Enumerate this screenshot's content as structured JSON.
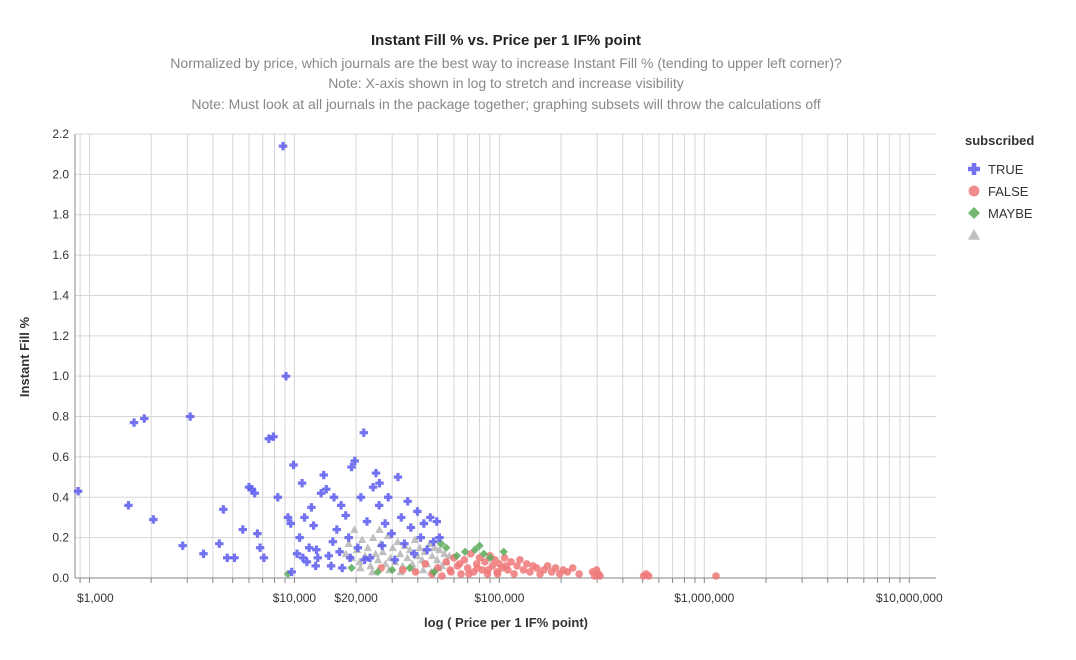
{
  "chart_data": {
    "type": "scatter",
    "title": "Instant Fill % vs. Price per 1 IF% point",
    "subtitles": [
      "Normalized by price, which journals are the best way to increase Instant Fill % (tending to upper left corner)?",
      "Note: X-axis shown in log to stretch and increase visibility",
      "Note: Must look at all journals in the package together; graphing subsets will throw the calculations off"
    ],
    "xlabel": "log ( Price per 1 IF% point)",
    "ylabel": "Instant Fill %",
    "x_scale": "log",
    "xlim": [
      850,
      13500000
    ],
    "ylim": [
      0,
      2.2
    ],
    "x_ticks": [
      {
        "value": 1000,
        "label": "$1,000"
      },
      {
        "value": 10000,
        "label": "$10,000"
      },
      {
        "value": 20000,
        "label": "$20,000"
      },
      {
        "value": 100000,
        "label": "$100,000"
      },
      {
        "value": 1000000,
        "label": "$1,000,000"
      },
      {
        "value": 10000000,
        "label": "$10,000,000"
      }
    ],
    "y_ticks": [
      {
        "value": 0,
        "label": "0.0"
      },
      {
        "value": 0.2,
        "label": "0.2"
      },
      {
        "value": 0.4,
        "label": "0.4"
      },
      {
        "value": 0.6,
        "label": "0.6"
      },
      {
        "value": 0.8,
        "label": "0.8"
      },
      {
        "value": 1.0,
        "label": "1.0"
      },
      {
        "value": 1.2,
        "label": "1.2"
      },
      {
        "value": 1.4,
        "label": "1.4"
      },
      {
        "value": 1.6,
        "label": "1.6"
      },
      {
        "value": 1.8,
        "label": "1.8"
      },
      {
        "value": 2.0,
        "label": "2.0"
      },
      {
        "value": 2.2,
        "label": "2.2"
      }
    ],
    "grid": true,
    "legend_title": "subscribed",
    "legend_position": "right",
    "series": [
      {
        "name": "TRUE",
        "marker": "cross",
        "color": "#5b5bf0",
        "points": [
          [
            880,
            0.43
          ],
          [
            1550,
            0.36
          ],
          [
            1650,
            0.77
          ],
          [
            1850,
            0.79
          ],
          [
            2050,
            0.29
          ],
          [
            2850,
            0.16
          ],
          [
            3100,
            0.8
          ],
          [
            3600,
            0.12
          ],
          [
            4300,
            0.17
          ],
          [
            4500,
            0.34
          ],
          [
            4700,
            0.1
          ],
          [
            5100,
            0.1
          ],
          [
            5600,
            0.24
          ],
          [
            6000,
            0.45
          ],
          [
            6200,
            0.44
          ],
          [
            6400,
            0.42
          ],
          [
            6600,
            0.22
          ],
          [
            6800,
            0.15
          ],
          [
            7100,
            0.1
          ],
          [
            7500,
            0.69
          ],
          [
            7900,
            0.7
          ],
          [
            8300,
            0.4
          ],
          [
            8800,
            2.14
          ],
          [
            9100,
            1.0
          ],
          [
            9300,
            0.3
          ],
          [
            9600,
            0.27
          ],
          [
            9900,
            0.56
          ],
          [
            10300,
            0.12
          ],
          [
            10600,
            0.2
          ],
          [
            10900,
            0.47
          ],
          [
            11200,
            0.3
          ],
          [
            11500,
            0.08
          ],
          [
            11800,
            0.15
          ],
          [
            12100,
            0.35
          ],
          [
            12400,
            0.26
          ],
          [
            12700,
            0.06
          ],
          [
            13000,
            0.1
          ],
          [
            13500,
            0.42
          ],
          [
            13900,
            0.51
          ],
          [
            14300,
            0.44
          ],
          [
            14700,
            0.11
          ],
          [
            15100,
            0.06
          ],
          [
            15600,
            0.4
          ],
          [
            16100,
            0.24
          ],
          [
            16600,
            0.13
          ],
          [
            17100,
            0.05
          ],
          [
            17800,
            0.31
          ],
          [
            18400,
            0.2
          ],
          [
            19000,
            0.55
          ],
          [
            19700,
            0.58
          ],
          [
            20400,
            0.15
          ],
          [
            21100,
            0.4
          ],
          [
            21800,
            0.72
          ],
          [
            22600,
            0.28
          ],
          [
            23400,
            0.1
          ],
          [
            24200,
            0.45
          ],
          [
            25000,
            0.52
          ],
          [
            25900,
            0.36
          ],
          [
            26800,
            0.16
          ],
          [
            27700,
            0.27
          ],
          [
            28700,
            0.4
          ],
          [
            29800,
            0.22
          ],
          [
            30900,
            0.09
          ],
          [
            32000,
            0.5
          ],
          [
            33200,
            0.3
          ],
          [
            34400,
            0.17
          ],
          [
            35700,
            0.38
          ],
          [
            37000,
            0.25
          ],
          [
            38400,
            0.12
          ],
          [
            39800,
            0.33
          ],
          [
            41300,
            0.2
          ],
          [
            42800,
            0.27
          ],
          [
            44400,
            0.14
          ],
          [
            46000,
            0.3
          ],
          [
            47700,
            0.18
          ],
          [
            49500,
            0.28
          ],
          [
            51000,
            0.2
          ],
          [
            15400,
            0.18
          ],
          [
            18700,
            0.1
          ],
          [
            22000,
            0.09
          ],
          [
            11000,
            0.1
          ],
          [
            26000,
            0.47
          ],
          [
            12800,
            0.14
          ],
          [
            9700,
            0.03
          ],
          [
            16900,
            0.36
          ]
        ]
      },
      {
        "name": "FALSE",
        "marker": "circle",
        "color": "#f07878",
        "points": [
          [
            26500,
            0.05
          ],
          [
            33800,
            0.04
          ],
          [
            39000,
            0.03
          ],
          [
            43500,
            0.07
          ],
          [
            47000,
            0.02
          ],
          [
            50000,
            0.05
          ],
          [
            52500,
            0.01
          ],
          [
            55000,
            0.08
          ],
          [
            57500,
            0.04
          ],
          [
            60000,
            0.1
          ],
          [
            62500,
            0.06
          ],
          [
            65000,
            0.02
          ],
          [
            67500,
            0.09
          ],
          [
            70000,
            0.05
          ],
          [
            72500,
            0.12
          ],
          [
            75000,
            0.03
          ],
          [
            77500,
            0.07
          ],
          [
            80000,
            0.1
          ],
          [
            82500,
            0.04
          ],
          [
            85000,
            0.08
          ],
          [
            87500,
            0.02
          ],
          [
            90000,
            0.11
          ],
          [
            92500,
            0.06
          ],
          [
            95000,
            0.09
          ],
          [
            97500,
            0.03
          ],
          [
            100000,
            0.07
          ],
          [
            103000,
            0.05
          ],
          [
            106000,
            0.1
          ],
          [
            110000,
            0.04
          ],
          [
            114000,
            0.08
          ],
          [
            118000,
            0.02
          ],
          [
            122000,
            0.06
          ],
          [
            126000,
            0.09
          ],
          [
            131000,
            0.04
          ],
          [
            136000,
            0.07
          ],
          [
            141000,
            0.03
          ],
          [
            146000,
            0.06
          ],
          [
            152000,
            0.05
          ],
          [
            158000,
            0.02
          ],
          [
            165000,
            0.04
          ],
          [
            172000,
            0.06
          ],
          [
            180000,
            0.03
          ],
          [
            188000,
            0.05
          ],
          [
            197000,
            0.02
          ],
          [
            205000,
            0.04
          ],
          [
            215000,
            0.03
          ],
          [
            228000,
            0.05
          ],
          [
            245000,
            0.02
          ],
          [
            285000,
            0.03
          ],
          [
            292000,
            0.01
          ],
          [
            298000,
            0.04
          ],
          [
            304000,
            0.02
          ],
          [
            310000,
            0.01
          ],
          [
            505000,
            0.01
          ],
          [
            520000,
            0.02
          ],
          [
            535000,
            0.01
          ],
          [
            1140000,
            0.01
          ],
          [
            58000,
            0.03
          ],
          [
            64000,
            0.07
          ],
          [
            71000,
            0.02
          ],
          [
            78000,
            0.05
          ],
          [
            88000,
            0.04
          ],
          [
            98000,
            0.02
          ],
          [
            108000,
            0.06
          ]
        ]
      },
      {
        "name": "MAYBE",
        "marker": "diamond",
        "color": "#5aaa5a",
        "points": [
          [
            9300,
            0.02
          ],
          [
            19000,
            0.05
          ],
          [
            25500,
            0.03
          ],
          [
            30000,
            0.04
          ],
          [
            36500,
            0.05
          ],
          [
            48000,
            0.03
          ],
          [
            52000,
            0.17
          ],
          [
            55000,
            0.15
          ],
          [
            62000,
            0.11
          ],
          [
            68000,
            0.13
          ],
          [
            76000,
            0.14
          ],
          [
            80000,
            0.16
          ],
          [
            84000,
            0.12
          ],
          [
            90000,
            0.1
          ],
          [
            105000,
            0.13
          ]
        ]
      },
      {
        "name": "",
        "marker": "triangle",
        "color": "#b5b5b5",
        "points": [
          [
            17800,
            0.12
          ],
          [
            18400,
            0.17
          ],
          [
            19000,
            0.1
          ],
          [
            19600,
            0.24
          ],
          [
            20200,
            0.14
          ],
          [
            20800,
            0.08
          ],
          [
            21400,
            0.19
          ],
          [
            22100,
            0.11
          ],
          [
            22800,
            0.15
          ],
          [
            23500,
            0.06
          ],
          [
            24200,
            0.2
          ],
          [
            24900,
            0.12
          ],
          [
            25600,
            0.09
          ],
          [
            26300,
            0.17
          ],
          [
            27000,
            0.13
          ],
          [
            27800,
            0.07
          ],
          [
            28600,
            0.21
          ],
          [
            29400,
            0.1
          ],
          [
            30200,
            0.15
          ],
          [
            31000,
            0.08
          ],
          [
            31900,
            0.18
          ],
          [
            32800,
            0.12
          ],
          [
            33700,
            0.06
          ],
          [
            34600,
            0.16
          ],
          [
            35600,
            0.1
          ],
          [
            36600,
            0.14
          ],
          [
            37600,
            0.07
          ],
          [
            38700,
            0.19
          ],
          [
            39800,
            0.11
          ],
          [
            40900,
            0.15
          ],
          [
            42000,
            0.09
          ],
          [
            43200,
            0.13
          ],
          [
            44400,
            0.07
          ],
          [
            45700,
            0.17
          ],
          [
            47000,
            0.11
          ],
          [
            48300,
            0.15
          ],
          [
            49700,
            0.09
          ],
          [
            51100,
            0.14
          ],
          [
            52500,
            0.06
          ],
          [
            53900,
            0.12
          ],
          [
            55400,
            0.08
          ],
          [
            57000,
            0.11
          ],
          [
            26000,
            0.24
          ],
          [
            29000,
            0.04
          ],
          [
            33000,
            0.03
          ],
          [
            38000,
            0.05
          ],
          [
            42500,
            0.04
          ],
          [
            46500,
            0.03
          ],
          [
            21000,
            0.05
          ],
          [
            24000,
            0.03
          ],
          [
            50500,
            0.05
          ]
        ]
      }
    ]
  }
}
